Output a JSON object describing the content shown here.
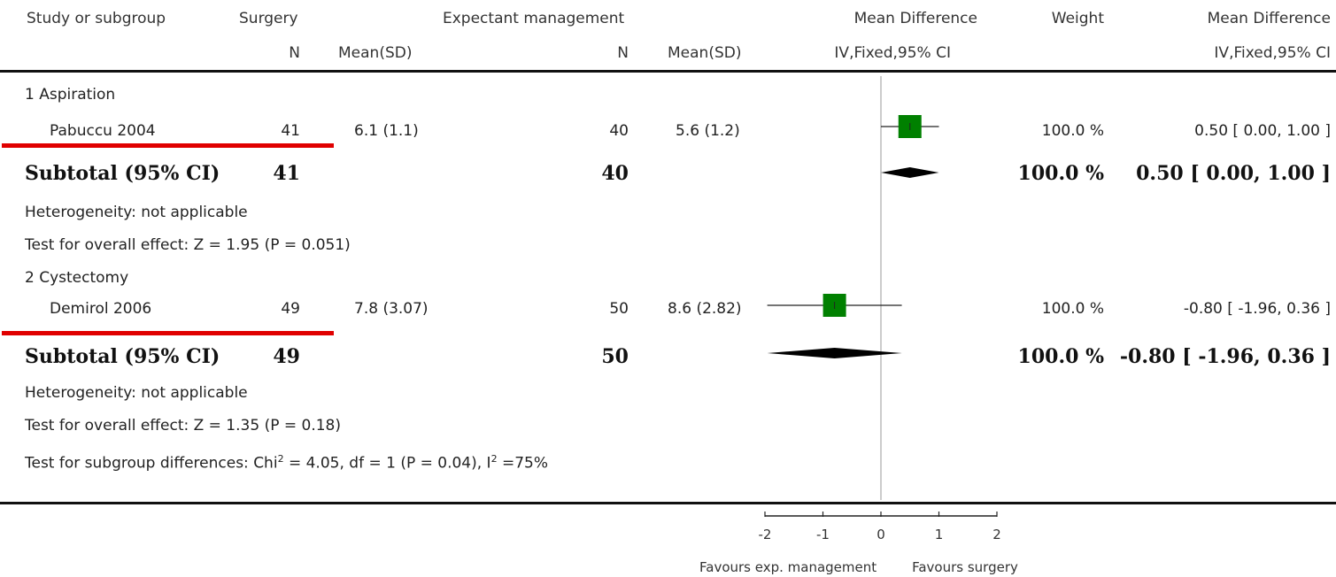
{
  "headers": {
    "study": "Study or subgroup",
    "surgery": "Surgery",
    "expectant": "Expectant management",
    "md": "Mean Difference",
    "weight": "Weight",
    "md_right": "Mean Difference",
    "n1": "N",
    "mean1": "Mean(SD)",
    "n2": "N",
    "mean2": "Mean(SD)",
    "method": "IV,Fixed,95% CI",
    "method_right": "IV,Fixed,95% CI"
  },
  "groups": [
    {
      "title": "1 Aspiration",
      "study": {
        "name": "Pabuccu 2004",
        "n1": "41",
        "m1": "6.1 (1.1)",
        "n2": "40",
        "m2": "5.6 (1.2)",
        "weight": "100.0 %",
        "ci_text": "0.50 [ 0.00, 1.00 ]"
      },
      "subtotal": {
        "label": "Subtotal (95% CI)",
        "n1": "41",
        "n2": "40",
        "weight": "100.0 %",
        "ci_text": "0.50 [ 0.00, 1.00 ]"
      },
      "heterogeneity": "Heterogeneity: not applicable",
      "overall": "Test for overall effect: Z = 1.95 (P = 0.051)"
    },
    {
      "title": "2 Cystectomy",
      "study": {
        "name": "Demirol 2006",
        "n1": "49",
        "m1": "7.8 (3.07)",
        "n2": "50",
        "m2": "8.6 (2.82)",
        "weight": "100.0 %",
        "ci_text": "-0.80 [ -1.96, 0.36 ]"
      },
      "subtotal": {
        "label": "Subtotal (95% CI)",
        "n1": "49",
        "n2": "50",
        "weight": "100.0 %",
        "ci_text": "-0.80 [ -1.96, 0.36 ]"
      },
      "heterogeneity": "Heterogeneity: not applicable",
      "overall": "Test for overall effect: Z = 1.35 (P = 0.18)"
    }
  ],
  "subgroup_test": {
    "pre": "Test for subgroup differences: Chi",
    "sup1": "2",
    "mid": " = 4.05, df = 1 (P = 0.04), I",
    "sup2": "2",
    "post": " =75%"
  },
  "footer": {
    "favours_left": "Favours exp. management",
    "favours_right": "Favours surgery"
  },
  "colors": {
    "marker": "#008000",
    "underline": "#e00000"
  },
  "chart_data": {
    "type": "forest",
    "xlim": [
      -2,
      2
    ],
    "ticks": [
      -2,
      -1,
      0,
      1,
      2
    ],
    "tick_labels": [
      "-2",
      "-1",
      "0",
      "1",
      "2"
    ],
    "studies": [
      {
        "name": "Pabuccu 2004",
        "md": 0.5,
        "lower": 0.0,
        "upper": 1.0,
        "weight": 100.0
      },
      {
        "name": "Demirol 2006",
        "md": -0.8,
        "lower": -1.96,
        "upper": 0.36,
        "weight": 100.0
      }
    ],
    "subtotals": [
      {
        "group": "1 Aspiration",
        "md": 0.5,
        "lower": 0.0,
        "upper": 1.0
      },
      {
        "group": "2 Cystectomy",
        "md": -0.8,
        "lower": -1.96,
        "upper": 0.36
      }
    ]
  }
}
